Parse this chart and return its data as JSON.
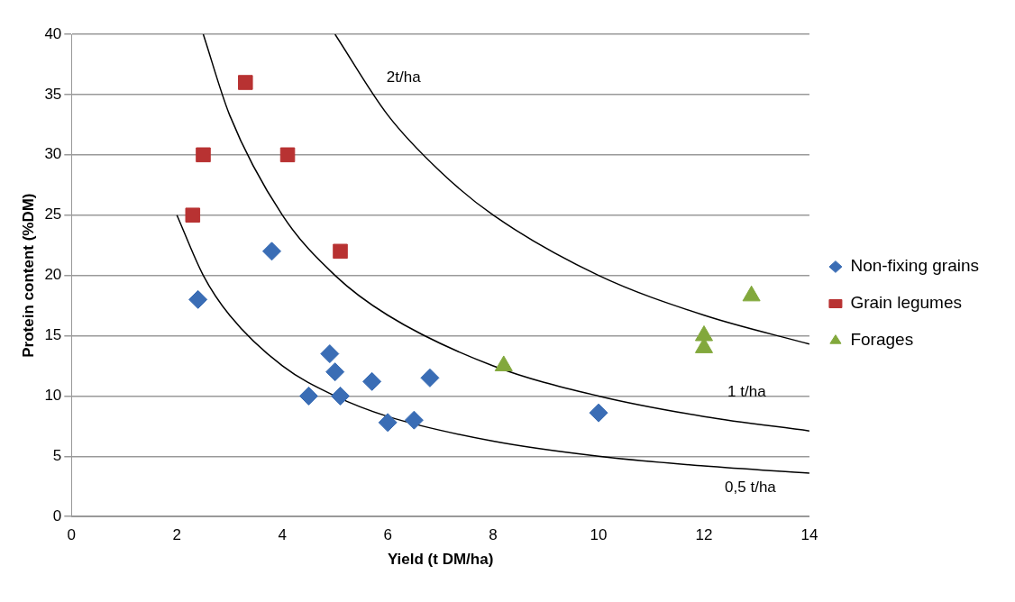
{
  "chart_data": {
    "type": "scatter",
    "xlabel": "Yield (t DM/ha)",
    "ylabel": "Protein content (%DM)",
    "xlim": [
      0,
      14
    ],
    "xticks": [
      0,
      2,
      4,
      6,
      8,
      10,
      12,
      14
    ],
    "ylim": [
      0,
      40
    ],
    "yticks": [
      0,
      5,
      10,
      15,
      20,
      25,
      30,
      35,
      40
    ],
    "grid": "y",
    "legend": "right",
    "series": [
      {
        "name": "Non-fixing grains",
        "color": "#3a6db5",
        "marker": "diamond",
        "x": [
          2.4,
          3.8,
          4.5,
          4.9,
          5,
          5.1,
          5.7,
          6,
          6.5,
          6.8,
          10
        ],
        "values": [
          18,
          22,
          10,
          13.5,
          12,
          10,
          11.2,
          7.8,
          8,
          11.5,
          8.6
        ]
      },
      {
        "name": "Grain legumes",
        "color": "#b83232",
        "marker": "square",
        "x": [
          2.3,
          2.5,
          3.3,
          4.1,
          5.1
        ],
        "values": [
          25,
          30,
          36,
          30,
          22
        ]
      },
      {
        "name": "Forages",
        "color": "#82a83c",
        "marker": "triangle",
        "x": [
          8.2,
          12,
          12,
          12.9
        ],
        "values": [
          12.5,
          14,
          15,
          18.3
        ]
      },
      {
        "name": "0,5 t/ha",
        "type": "line",
        "color": "#000000",
        "marker": "none",
        "x": [
          2,
          2.5,
          3,
          4,
          5,
          6,
          8,
          10,
          12,
          14
        ],
        "values": [
          25,
          20,
          16.7,
          12.5,
          10,
          8.3,
          6.25,
          5,
          4.2,
          3.6
        ]
      },
      {
        "name": "1 t/ha",
        "type": "line",
        "color": "#000000",
        "marker": "none",
        "x": [
          2.5,
          3,
          4,
          5,
          6,
          8,
          10,
          12,
          14
        ],
        "values": [
          40,
          33.3,
          25,
          20,
          16.7,
          12.5,
          10,
          8.3,
          7.1
        ]
      },
      {
        "name": "2t/ha",
        "type": "line",
        "color": "#000000",
        "marker": "none",
        "x": [
          5,
          6,
          7,
          8,
          10,
          12,
          14
        ],
        "values": [
          40,
          33.3,
          28.6,
          25,
          20,
          16.7,
          14.3
        ]
      }
    ]
  }
}
